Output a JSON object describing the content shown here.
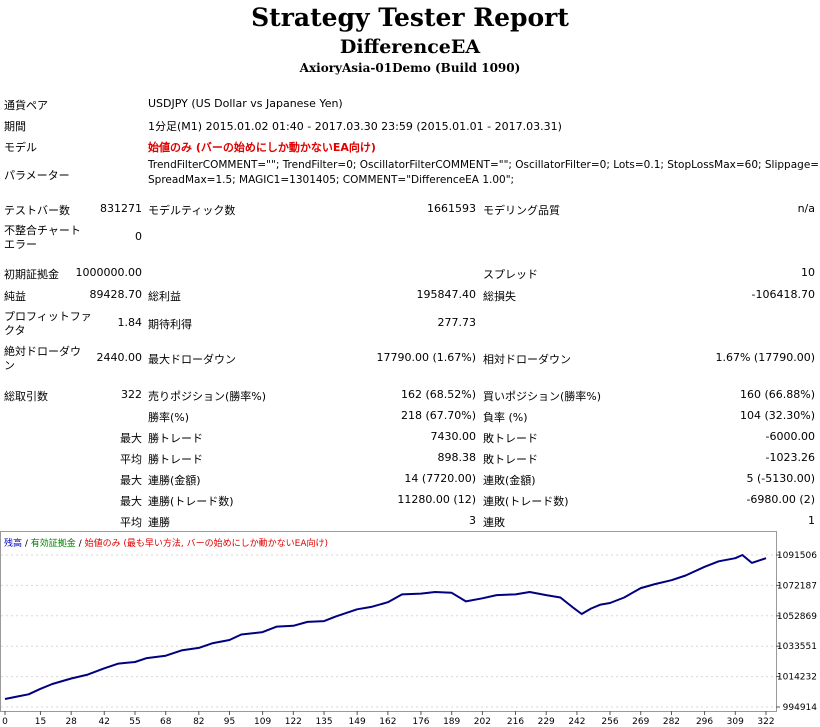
{
  "header": {
    "title": "Strategy Tester Report",
    "ea_name": "DifferenceEA",
    "server": "AxioryAsia-01Demo (Build 1090)"
  },
  "info": {
    "symbol_label": "通貨ペア",
    "symbol_value": "USDJPY (US Dollar vs Japanese Yen)",
    "period_label": "期間",
    "period_value": "1分足(M1) 2015.01.02 01:40 - 2017.03.30 23:59 (2015.01.01 - 2017.03.31)",
    "model_label": "モデル",
    "model_value": "始値のみ (バーの始めにしか動かないEA向け)",
    "params_label": "パラメーター",
    "params_line1": "TrendFilterCOMMENT=\"\"; TrendFilter=0; OscillatorFilterCOMMENT=\"\"; OscillatorFilter=0; Lots=0.1; StopLossMax=60; Slippage=3;",
    "params_line2": "SpreadMax=1.5; MAGIC1=1301405; COMMENT=\"DifferenceEA 1.00\";"
  },
  "stats": {
    "bars_label": "テストバー数",
    "bars_value": "831271",
    "ticks_label": "モデルティック数",
    "ticks_value": "1661593",
    "quality_label": "モデリング品質",
    "quality_value": "n/a",
    "mismatch_label1": "不整合チャート",
    "mismatch_label2": "エラー",
    "mismatch_value": "0",
    "deposit_label": "初期証拠金",
    "deposit_value": "1000000.00",
    "spread_label": "スプレッド",
    "spread_value": "10",
    "net_label": "純益",
    "net_value": "89428.70",
    "gross_profit_label": "総利益",
    "gross_profit_value": "195847.40",
    "gross_loss_label": "総損失",
    "gross_loss_value": "-106418.70",
    "pf_label1": "プロフィットファ",
    "pf_label2": "クタ",
    "pf_value": "1.84",
    "expected_label": "期待利得",
    "expected_value": "277.73",
    "abs_dd_label1": "絶対ドローダウ",
    "abs_dd_label2": "ン",
    "abs_dd_value": "2440.00",
    "max_dd_label": "最大ドローダウン",
    "max_dd_value": "17790.00 (1.67%)",
    "rel_dd_label": "相対ドローダウン",
    "rel_dd_value": "1.67% (17790.00)",
    "trades_label": "総取引数",
    "trades_value": "322",
    "short_label": "売りポジション(勝率%)",
    "short_value": "162 (68.52%)",
    "long_label": "買いポジション(勝率%)",
    "long_value": "160 (66.88%)",
    "win_rate_label": "勝率(%)",
    "win_rate_value": "218 (67.70%)",
    "loss_rate_label": "負率 (%)",
    "loss_rate_value": "104 (32.30%)",
    "max_word": "最大",
    "avg_word": "平均",
    "largest_win_label": "勝トレード",
    "largest_win_value": "7430.00",
    "largest_loss_label": "敗トレード",
    "largest_loss_value": "-6000.00",
    "avg_win_label": "勝トレード",
    "avg_win_value": "898.38",
    "avg_loss_label": "敗トレード",
    "avg_loss_value": "-1023.26",
    "max_cons_wins_label": "連勝(金額)",
    "max_cons_wins_value": "14 (7720.00)",
    "max_cons_losses_label": "連敗(金額)",
    "max_cons_losses_value": "5 (-5130.00)",
    "max_cons_profit_label": "連勝(トレード数)",
    "max_cons_profit_value": "11280.00 (12)",
    "max_cons_loss_label": "連敗(トレード数)",
    "max_cons_loss_value": "-6980.00 (2)",
    "avg_cons_wins_label": "連勝",
    "avg_cons_wins_value": "3",
    "avg_cons_losses_label": "連敗",
    "avg_cons_losses_value": "1"
  },
  "chart_data": {
    "type": "line",
    "legend": {
      "balance": "残高",
      "sep1": " / ",
      "equity": "有効証拠金",
      "sep2": " / ",
      "model": "始値のみ (最も早い方法, バーの始めにしか動かないEA向け)"
    },
    "colors": {
      "line": "#000080",
      "balance": "#0000c0",
      "equity": "#008000",
      "model": "#e00000"
    },
    "x_ticks": [
      "0",
      "15",
      "28",
      "42",
      "55",
      "68",
      "82",
      "95",
      "109",
      "122",
      "135",
      "149",
      "162",
      "176",
      "189",
      "202",
      "216",
      "229",
      "242",
      "256",
      "269",
      "282",
      "296",
      "309",
      "322"
    ],
    "y_ticks": [
      "1091506",
      "1072187",
      "1052869",
      "1033551",
      "1014232",
      "994914"
    ],
    "xlim": [
      0,
      322
    ],
    "ylim": [
      994914,
      1091506
    ],
    "x": [
      0,
      5,
      10,
      15,
      20,
      28,
      35,
      42,
      48,
      55,
      60,
      68,
      75,
      82,
      88,
      95,
      100,
      109,
      115,
      122,
      128,
      135,
      140,
      149,
      155,
      162,
      168,
      176,
      182,
      189,
      195,
      202,
      208,
      216,
      222,
      229,
      235,
      240,
      244,
      248,
      252,
      256,
      262,
      269,
      275,
      282,
      288,
      296,
      302,
      309,
      312,
      316,
      322
    ],
    "y": [
      1000000,
      1001500,
      1003000,
      1006500,
      1009500,
      1013000,
      1015500,
      1019500,
      1022500,
      1023500,
      1026000,
      1027500,
      1031000,
      1032500,
      1035500,
      1037500,
      1041000,
      1042500,
      1046000,
      1046500,
      1049000,
      1049500,
      1052500,
      1057000,
      1058500,
      1061500,
      1066500,
      1067000,
      1068000,
      1067500,
      1062000,
      1064000,
      1066000,
      1066500,
      1068000,
      1066000,
      1064500,
      1058500,
      1054000,
      1057500,
      1060000,
      1061000,
      1064500,
      1070500,
      1073000,
      1075500,
      1078500,
      1084000,
      1087500,
      1089500,
      1091506,
      1086500,
      1089500
    ]
  }
}
